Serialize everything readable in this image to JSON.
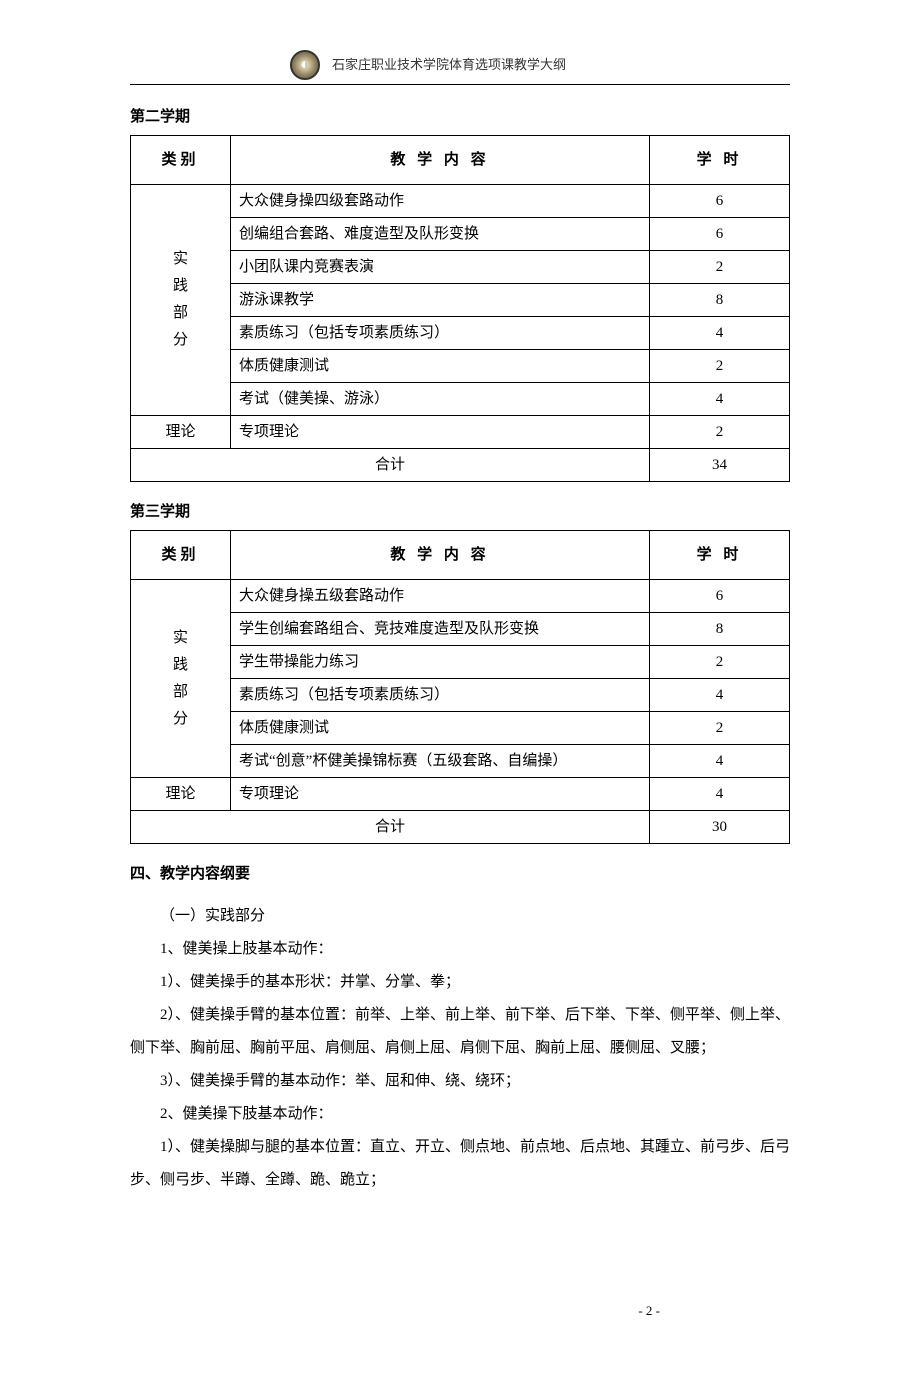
{
  "header": {
    "logo_alt": "校徽",
    "institution_text": "石家庄职业技术学院体育选项课教学大纲"
  },
  "semester2": {
    "heading": "第二学期",
    "columns": {
      "category": "类别",
      "content": "教 学 内 容",
      "hours": "学 时"
    },
    "practice_label": "实<br>践<br>部<br>分",
    "practice_rows": [
      {
        "content": "大众健身操四级套路动作",
        "hours": "6"
      },
      {
        "content": "创编组合套路、难度造型及队形变换",
        "hours": "6"
      },
      {
        "content": "小团队课内竞赛表演",
        "hours": "2"
      },
      {
        "content": "游泳课教学",
        "hours": "8"
      },
      {
        "content": "素质练习（包括专项素质练习）",
        "hours": "4"
      },
      {
        "content": "体质健康测试",
        "hours": "2"
      },
      {
        "content": "考试（健美操、游泳）",
        "hours": "4"
      }
    ],
    "theory_label": "理论",
    "theory_row": {
      "content": "专项理论",
      "hours": "2"
    },
    "total_label": "合计",
    "total_hours": "34"
  },
  "semester3": {
    "heading": "第三学期",
    "columns": {
      "category": "类别",
      "content": "教 学 内 容",
      "hours": "学 时"
    },
    "practice_label": "实<br>践<br>部<br>分",
    "practice_rows": [
      {
        "content": "大众健身操五级套路动作",
        "hours": "6"
      },
      {
        "content": "学生创编套路组合、竞技难度造型及队形变换",
        "hours": "8"
      },
      {
        "content": "学生带操能力练习",
        "hours": "2"
      },
      {
        "content": "素质练习（包括专项素质练习）",
        "hours": "4"
      },
      {
        "content": "体质健康测试",
        "hours": "2"
      },
      {
        "content": "考试“创意”杯健美操锦标赛（五级套路、自编操）",
        "hours": "4"
      }
    ],
    "theory_label": "理论",
    "theory_row": {
      "content": "专项理论",
      "hours": "4"
    },
    "total_label": "合计",
    "total_hours": "30"
  },
  "outline": {
    "heading": "四、教学内容纲要",
    "lines": [
      "（一）实践部分",
      "1、健美操上肢基本动作：",
      "1）、健美操手的基本形状：并掌、分掌、拳；",
      "2）、健美操手臂的基本位置：前举、上举、前上举、前下举、后下举、下举、侧平举、侧上举、侧下举、胸前屈、胸前平屈、肩侧屈、肩侧上屈、肩侧下屈、胸前上屈、腰侧屈、叉腰；",
      "3）、健美操手臂的基本动作：举、屈和伸、绕、绕环；",
      "2、健美操下肢基本动作：",
      "1）、健美操脚与腿的基本位置：直立、开立、侧点地、前点地、后点地、其踵立、前弓步、后弓步、侧弓步、半蹲、全蹲、跪、跪立；"
    ]
  },
  "page_number": "- 2 -"
}
